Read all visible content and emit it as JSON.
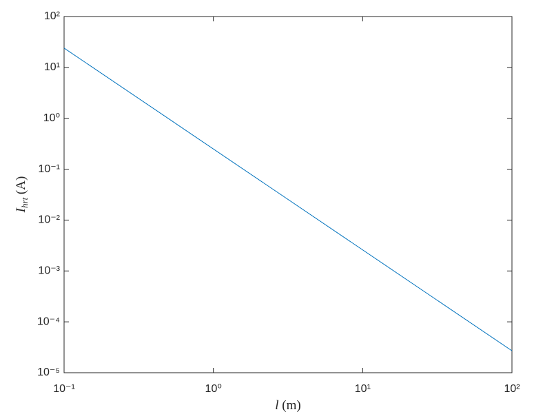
{
  "chart_data": {
    "type": "line",
    "xlabel": {
      "symbol": "l",
      "unit": "(m)"
    },
    "ylabel": {
      "symbol": "I",
      "subscript": "hrt",
      "unit": "(A)"
    },
    "xscale": "log",
    "yscale": "log",
    "xlim": [
      0.1,
      100
    ],
    "ylim": [
      1e-05,
      100
    ],
    "xticks": [
      {
        "value": 0.1,
        "label": "10⁻¹"
      },
      {
        "value": 1,
        "label": "10⁰"
      },
      {
        "value": 10,
        "label": "10¹"
      },
      {
        "value": 100,
        "label": "10²"
      }
    ],
    "yticks": [
      {
        "value": 1e-05,
        "label": "10⁻⁵"
      },
      {
        "value": 0.0001,
        "label": "10⁻⁴"
      },
      {
        "value": 0.001,
        "label": "10⁻³"
      },
      {
        "value": 0.01,
        "label": "10⁻²"
      },
      {
        "value": 0.1,
        "label": "10⁻¹"
      },
      {
        "value": 1,
        "label": "10⁰"
      },
      {
        "value": 10,
        "label": "10¹"
      },
      {
        "value": 100,
        "label": "10²"
      }
    ],
    "grid": false,
    "series": [
      {
        "color": "#0072bd",
        "x": [
          0.1,
          100
        ],
        "values": [
          24,
          2.7e-05
        ]
      }
    ]
  }
}
